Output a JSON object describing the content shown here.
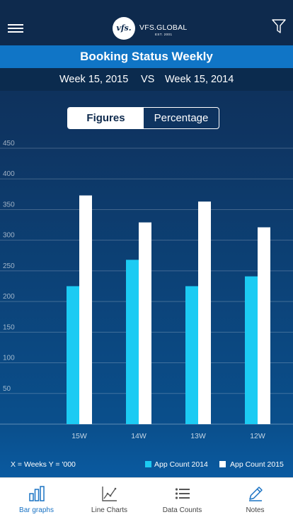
{
  "header": {
    "logo_mark": "vfs.",
    "logo_text": "VFS.GLOBAL",
    "logo_est": "EST. 2001"
  },
  "title": "Booking Status Weekly",
  "comparison": {
    "week_a": "Week 15, 2015",
    "vs": "VS",
    "week_b": "Week 15, 2014"
  },
  "toggle": {
    "figures": "Figures",
    "percentage": "Percentage",
    "selected": "Figures"
  },
  "legend": {
    "axis_note": "X = Weeks    Y = '000",
    "series_2014": "App Count 2014",
    "series_2015": "App Count 2015"
  },
  "tabs": [
    {
      "label": "Bar graphs",
      "icon": "bar-graph-icon",
      "active": true
    },
    {
      "label": "Line Charts",
      "icon": "line-chart-icon",
      "active": false
    },
    {
      "label": "Data Counts",
      "icon": "list-icon",
      "active": false
    },
    {
      "label": "Notes",
      "icon": "pencil-icon",
      "active": false
    }
  ],
  "colors": {
    "series_2014": "#1ccbf3",
    "series_2015": "#ffffff",
    "active_tab": "#1a73c4",
    "title_bar": "#1075c6"
  },
  "chart_data": {
    "type": "bar",
    "categories": [
      "15W",
      "14W",
      "13W",
      "12W"
    ],
    "series": [
      {
        "name": "App Count 2014",
        "values": [
          225,
          268,
          225,
          241
        ]
      },
      {
        "name": "App Count 2015",
        "values": [
          373,
          329,
          363,
          321
        ]
      }
    ],
    "yticks": [
      50,
      100,
      150,
      200,
      250,
      300,
      350,
      400,
      450
    ],
    "ylim": [
      0,
      450
    ],
    "grid": true,
    "legend_position": "bottom"
  }
}
